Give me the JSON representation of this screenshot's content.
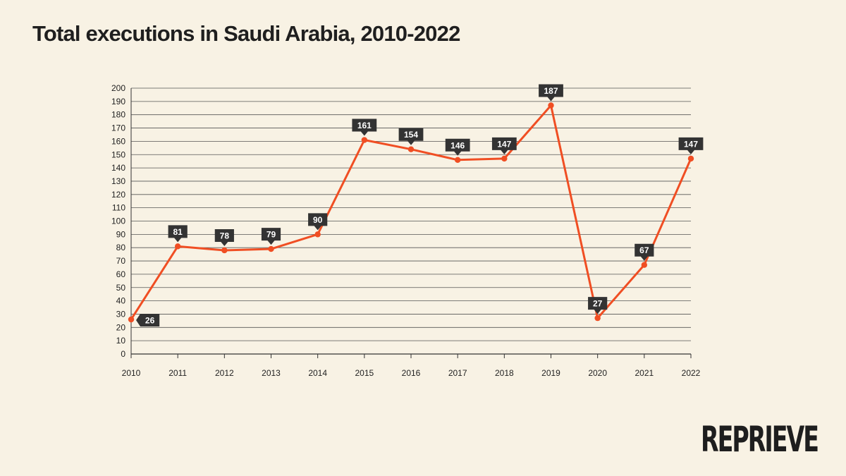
{
  "title": "Total executions in Saudi Arabia, 2010-2022",
  "logo_text": "REPRIEVE",
  "colors": {
    "background": "#f8f2e4",
    "line": "#f04e23",
    "label_box": "#333333",
    "grid": "#555555"
  },
  "chart_data": {
    "type": "line",
    "title": "Total executions in Saudi Arabia, 2010-2022",
    "xlabel": "",
    "ylabel": "",
    "x": [
      "2010",
      "2011",
      "2012",
      "2013",
      "2014",
      "2015",
      "2016",
      "2017",
      "2018",
      "2019",
      "2020",
      "2021",
      "2022"
    ],
    "series": [
      {
        "values": [
          26,
          81,
          78,
          79,
          90,
          161,
          154,
          146,
          147,
          187,
          27,
          67,
          147
        ]
      }
    ],
    "ylim": [
      0,
      200
    ],
    "yticks": [
      0,
      10,
      20,
      30,
      40,
      50,
      60,
      70,
      80,
      90,
      100,
      110,
      120,
      130,
      140,
      150,
      160,
      170,
      180,
      190,
      200
    ],
    "grid": true,
    "legend": "none",
    "data_labels": [
      "26",
      "81",
      "78",
      "79",
      "90",
      "161",
      "154",
      "146",
      "147",
      "187",
      "27",
      "67",
      "147"
    ]
  }
}
